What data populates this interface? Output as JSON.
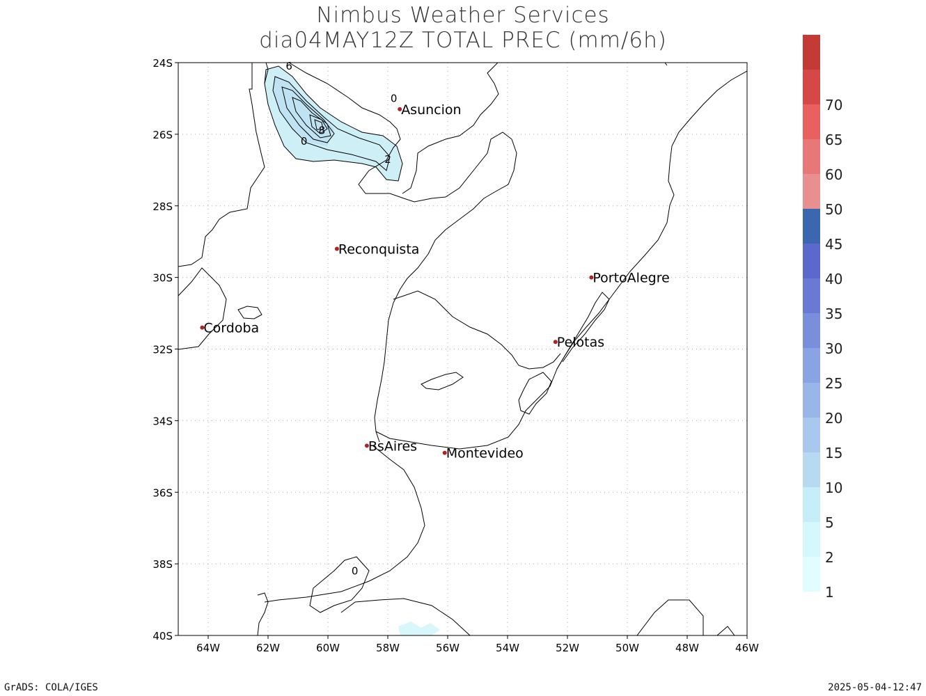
{
  "title": {
    "line1": "Nimbus Weather Services",
    "line2": "dia04MAY12Z TOTAL PREC (mm/6h)"
  },
  "footer": {
    "left": "GrADS: COLA/IGES",
    "right": "2025-05-04-12:47"
  },
  "map": {
    "lon_range": [
      -65,
      -46
    ],
    "lat_range": [
      -40,
      -24
    ],
    "lat_ticks": [
      {
        "value": -24,
        "label": "24S"
      },
      {
        "value": -26,
        "label": "26S"
      },
      {
        "value": -28,
        "label": "28S"
      },
      {
        "value": -30,
        "label": "30S"
      },
      {
        "value": -32,
        "label": "32S"
      },
      {
        "value": -34,
        "label": "34S"
      },
      {
        "value": -36,
        "label": "36S"
      },
      {
        "value": -38,
        "label": "38S"
      },
      {
        "value": -40,
        "label": "40S"
      }
    ],
    "lon_ticks": [
      {
        "value": -64,
        "label": "64W"
      },
      {
        "value": -62,
        "label": "62W"
      },
      {
        "value": -60,
        "label": "60W"
      },
      {
        "value": -58,
        "label": "58W"
      },
      {
        "value": -56,
        "label": "56W"
      },
      {
        "value": -54,
        "label": "54W"
      },
      {
        "value": -52,
        "label": "52W"
      },
      {
        "value": -50,
        "label": "50W"
      },
      {
        "value": -48,
        "label": "48W"
      },
      {
        "value": -46,
        "label": "46W"
      }
    ],
    "grid": true,
    "cities": [
      {
        "name": "Asuncion",
        "lon": -57.6,
        "lat": -25.3
      },
      {
        "name": "Reconquista",
        "lon": -59.7,
        "lat": -29.2
      },
      {
        "name": "PortoAlegre",
        "lon": -51.2,
        "lat": -30.0
      },
      {
        "name": "Cordoba",
        "lon": -64.2,
        "lat": -31.4
      },
      {
        "name": "Pelotas",
        "lon": -52.4,
        "lat": -31.8
      },
      {
        "name": "BsAires",
        "lon": -58.7,
        "lat": -34.7
      },
      {
        "name": "Montevideo",
        "lon": -56.1,
        "lat": -34.9
      }
    ],
    "city_marker_color": "#b22222",
    "contour_labels": [
      {
        "text": "6",
        "lon": -61.3,
        "lat": -24.1
      },
      {
        "text": "0",
        "lon": -57.8,
        "lat": -25.0
      },
      {
        "text": "8",
        "lon": -60.2,
        "lat": -25.9
      },
      {
        "text": "0",
        "lon": -60.8,
        "lat": -26.2
      },
      {
        "text": "2",
        "lon": -58.0,
        "lat": -26.7
      },
      {
        "text": "0",
        "lon": -59.1,
        "lat": -38.2
      }
    ]
  },
  "colorbar": {
    "colors": [
      "#e1fdff",
      "#d4f8fc",
      "#c6eef8",
      "#b8d9f2",
      "#aac8ee",
      "#9ab6e8",
      "#8aa3e2",
      "#7a8fdc",
      "#6a7ad4",
      "#5b68cc",
      "#3b67b0",
      "#e89090",
      "#e87878",
      "#e86060",
      "#d64848",
      "#c23b35"
    ],
    "labels": [
      "1",
      "2",
      "5",
      "10",
      "15",
      "20",
      "25",
      "30",
      "35",
      "40",
      "45",
      "50",
      "60",
      "65",
      "70"
    ]
  }
}
